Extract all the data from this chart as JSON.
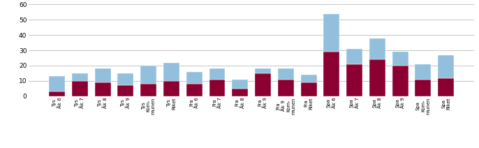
{
  "categories": [
    "Tys\nÅk 6",
    "Tys\nÅk 7",
    "Tys\nÅk 8",
    "Tys\nÅk 9",
    "Tys\nKom-\nmunen",
    "Tys\nRiket",
    "Fra\nÅk 6",
    "Fra\nÅk 7",
    "Fra\nÅk 8",
    "Fra\nÅk 9",
    "Fra\nÅk 9\nKom-\nmunen",
    "Fra\nRiket",
    "Spa\nÅk 6",
    "Spa\nÅk 7",
    "Spa\nÅk 8",
    "Spa\nÅk 9",
    "Spa\nKom-\nmunen",
    "Spa\nRiket"
  ],
  "bottom_values": [
    3,
    10,
    9,
    7,
    8,
    10,
    8,
    11,
    5,
    15,
    11,
    9,
    29,
    21,
    24,
    20,
    11,
    12
  ],
  "top_values": [
    10,
    5,
    9,
    8,
    12,
    12,
    8,
    7,
    6,
    3,
    7,
    5,
    25,
    10,
    14,
    9,
    10,
    15
  ],
  "bar_color_bottom": "#8B0030",
  "bar_color_top": "#92C0DC",
  "bar_width": 0.7,
  "ylim": [
    0,
    60
  ],
  "yticks": [
    0,
    10,
    20,
    30,
    40,
    50,
    60
  ],
  "grid_color": "#BBBBBB",
  "background_color": "#FFFFFF",
  "edge_color": "#FFFFFF",
  "tick_label_fontsize": 5.0,
  "ytick_fontsize": 6.5
}
